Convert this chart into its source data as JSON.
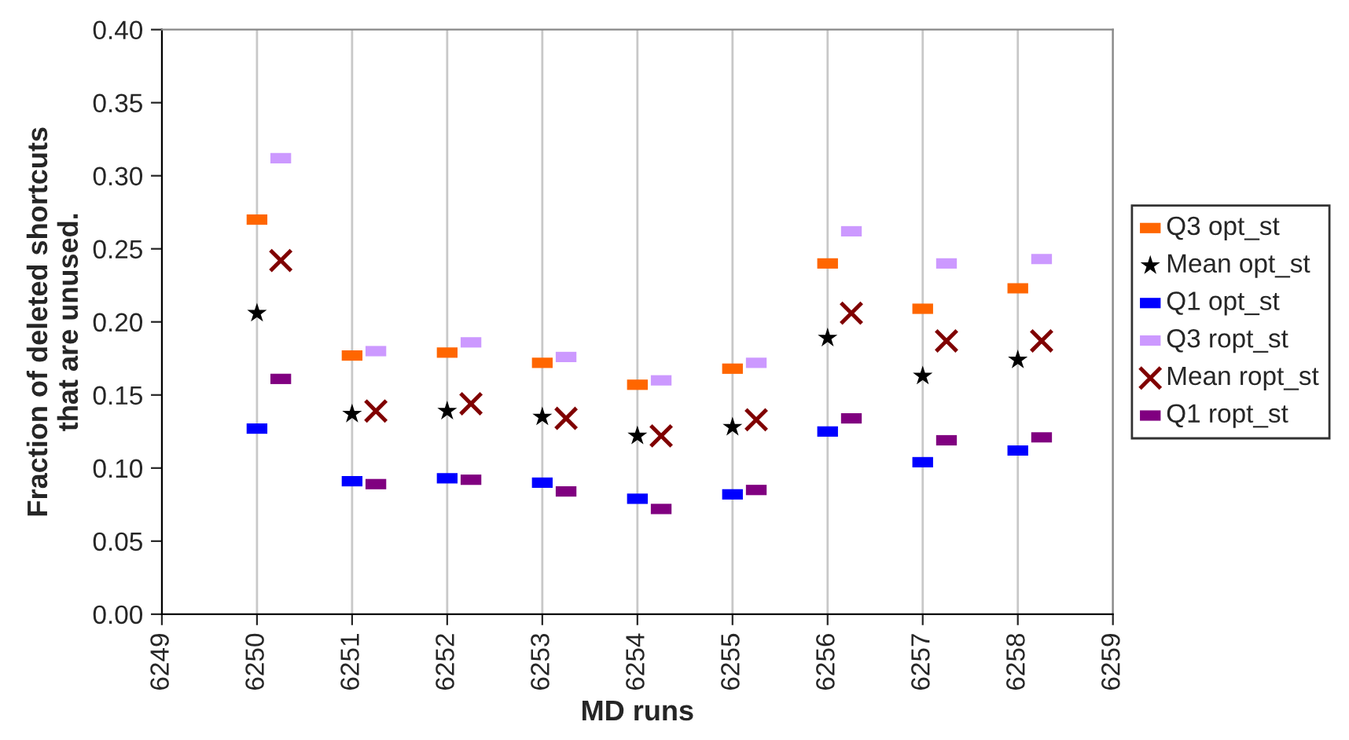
{
  "chart_data": {
    "type": "scatter",
    "xlabel": "MD runs",
    "ylabel": "Fraction of deleted shortcuts\nthat are unused.",
    "xlim": [
      6249,
      6259
    ],
    "xticks": [
      6249,
      6250,
      6251,
      6252,
      6253,
      6254,
      6255,
      6256,
      6257,
      6258,
      6259
    ],
    "ylim": [
      0,
      0.4
    ],
    "yticks": [
      {
        "value": 0,
        "label": "0.00"
      },
      {
        "value": 0.05,
        "label": "0.05"
      },
      {
        "value": 0.1,
        "label": "0.10"
      },
      {
        "value": 0.15,
        "label": "0.15"
      },
      {
        "value": 0.2,
        "label": "0.20"
      },
      {
        "value": 0.25,
        "label": "0.25"
      },
      {
        "value": 0.3,
        "label": "0.30"
      },
      {
        "value": 0.35,
        "label": "0.35"
      },
      {
        "value": 0.4,
        "label": "0.40"
      }
    ],
    "grid": "x",
    "legend": "right",
    "series": [
      {
        "name": "Q3 opt_st",
        "color": "#ff6600",
        "marker": "square",
        "x": [
          6250,
          6251,
          6252,
          6253,
          6254,
          6255,
          6256,
          6257,
          6258
        ],
        "values": [
          0.27,
          0.177,
          0.179,
          0.172,
          0.157,
          0.168,
          0.24,
          0.209,
          0.223
        ]
      },
      {
        "name": "Mean opt_st",
        "color": "#000000",
        "marker": "star",
        "x": [
          6250,
          6251,
          6252,
          6253,
          6254,
          6255,
          6256,
          6257,
          6258
        ],
        "values": [
          0.206,
          0.137,
          0.139,
          0.135,
          0.122,
          0.128,
          0.189,
          0.163,
          0.174
        ]
      },
      {
        "name": "Q1 opt_st",
        "color": "#0000ff",
        "marker": "square",
        "x": [
          6250,
          6251,
          6252,
          6253,
          6254,
          6255,
          6256,
          6257,
          6258
        ],
        "values": [
          0.127,
          0.091,
          0.093,
          0.09,
          0.079,
          0.082,
          0.125,
          0.104,
          0.112
        ]
      },
      {
        "name": "Q3 ropt_st",
        "color": "#cc99ff",
        "marker": "square",
        "x": [
          6250.25,
          6251.25,
          6252.25,
          6253.25,
          6254.25,
          6255.25,
          6256.25,
          6257.25,
          6258.25
        ],
        "values": [
          0.312,
          0.18,
          0.186,
          0.176,
          0.16,
          0.172,
          0.262,
          0.24,
          0.243
        ]
      },
      {
        "name": "Mean ropt_st",
        "color": "#800000",
        "marker": "cross",
        "x": [
          6250.25,
          6251.25,
          6252.25,
          6253.25,
          6254.25,
          6255.25,
          6256.25,
          6257.25,
          6258.25
        ],
        "values": [
          0.242,
          0.139,
          0.144,
          0.134,
          0.122,
          0.133,
          0.206,
          0.187,
          0.187
        ]
      },
      {
        "name": "Q1 ropt_st",
        "color": "#800080",
        "marker": "square",
        "x": [
          6250.25,
          6251.25,
          6252.25,
          6253.25,
          6254.25,
          6255.25,
          6256.25,
          6257.25,
          6258.25
        ],
        "values": [
          0.161,
          0.089,
          0.092,
          0.084,
          0.072,
          0.085,
          0.134,
          0.119,
          0.121
        ]
      }
    ]
  }
}
